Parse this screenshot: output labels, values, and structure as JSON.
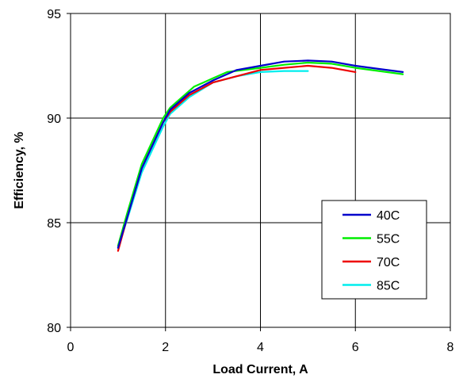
{
  "chart_data": {
    "type": "line",
    "title": "",
    "xlabel": "Load Current, A",
    "ylabel": "Efficiency, %",
    "xlim": [
      0,
      8
    ],
    "ylim": [
      80,
      95
    ],
    "xticks": [
      "0",
      "2",
      "4",
      "6",
      "8"
    ],
    "yticks": [
      "80",
      "85",
      "90",
      "95"
    ],
    "grid": true,
    "legend_position": "lower-right",
    "series": [
      {
        "name": "40C",
        "color": "#0000cc",
        "x": [
          1.0,
          1.2,
          1.5,
          1.95,
          2.1,
          2.5,
          3.0,
          3.5,
          4.0,
          4.5,
          5.0,
          5.5,
          6.0,
          6.5,
          7.0
        ],
        "y": [
          83.8,
          85.3,
          87.6,
          89.8,
          90.4,
          91.2,
          91.8,
          92.3,
          92.5,
          92.7,
          92.75,
          92.7,
          92.5,
          92.35,
          92.2
        ]
      },
      {
        "name": "55C",
        "color": "#00ee00",
        "x": [
          1.0,
          1.2,
          1.5,
          1.95,
          2.1,
          2.6,
          3.0,
          3.3,
          4.0,
          4.5,
          5.0,
          5.5,
          6.0,
          6.5,
          7.0
        ],
        "y": [
          83.9,
          85.5,
          87.8,
          90.0,
          90.5,
          91.5,
          91.9,
          92.2,
          92.4,
          92.55,
          92.65,
          92.6,
          92.4,
          92.25,
          92.1
        ]
      },
      {
        "name": "70C",
        "color": "#ee0000",
        "x": [
          1.0,
          1.2,
          1.5,
          1.95,
          2.1,
          2.5,
          3.0,
          3.5,
          4.0,
          4.5,
          5.0,
          5.5,
          6.0
        ],
        "y": [
          83.65,
          85.3,
          87.6,
          89.8,
          90.3,
          91.1,
          91.7,
          92.0,
          92.3,
          92.4,
          92.5,
          92.4,
          92.2
        ]
      },
      {
        "name": "85C",
        "color": "#00eeee",
        "x": [
          1.0,
          1.2,
          1.5,
          1.95,
          2.1,
          2.5,
          3.0,
          3.5,
          4.0,
          4.5,
          5.0
        ],
        "y": [
          83.8,
          85.2,
          87.4,
          89.6,
          90.2,
          91.0,
          91.7,
          92.0,
          92.2,
          92.25,
          92.25
        ]
      }
    ]
  }
}
